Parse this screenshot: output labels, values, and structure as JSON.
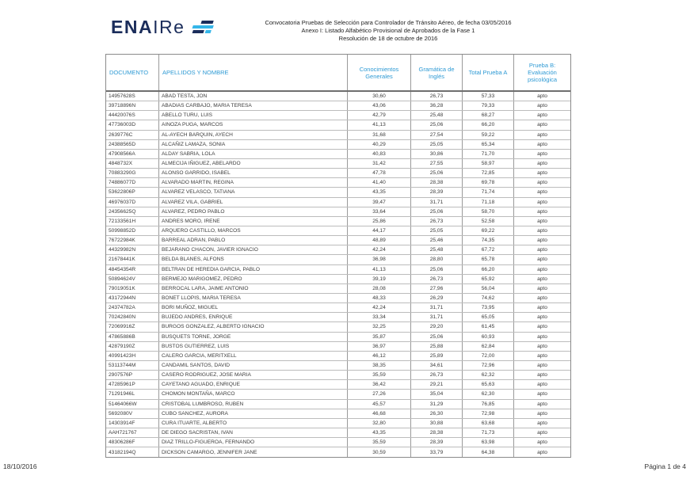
{
  "logo": {
    "text_bold": "ENA",
    "text_light": "IRe"
  },
  "header": {
    "line1": "Convocatoria Pruebas de Selección para Controlador de Tránsito Aéreo, de fecha 03/05/2016",
    "line2": "Anexo I: Listado Alfabético Provisional de Aprobados de la Fase 1",
    "line3": "Resolución de 18 de octubre de 2016"
  },
  "colors": {
    "brand_navy": "#1B2D5B",
    "brand_lightblue": "#35B6E9",
    "table_header_blue": "#2E9AD4"
  },
  "table": {
    "columns": [
      {
        "key": "documento",
        "label": "DOCUMENTO"
      },
      {
        "key": "apellidos_y_nombre",
        "label": "APELLIDOS Y NOMBRE"
      },
      {
        "key": "conocimientos_generales",
        "label": "Conocimientos Generales"
      },
      {
        "key": "gramatica_de_ingles",
        "label": "Gramática de Inglés"
      },
      {
        "key": "total_prueba_a",
        "label": "Total Prueba A"
      },
      {
        "key": "prueba_b",
        "label": "Prueba B: Evaluación psicológica"
      }
    ],
    "rows": [
      [
        "14957628S",
        "ABAD TESTA, JON",
        "30,60",
        "26,73",
        "57,33",
        "apto"
      ],
      [
        "39718896N",
        "ABADIAS CARBAJO, MARIA TERESA",
        "43,06",
        "36,28",
        "79,33",
        "apto"
      ],
      [
        "44420076S",
        "ABELLO TURU, LUIS",
        "42,79",
        "25,48",
        "68,27",
        "apto"
      ],
      [
        "47736003D",
        "AINOZA PUGA, MARCOS",
        "41,13",
        "25,06",
        "66,20",
        "apto"
      ],
      [
        "2639776C",
        "AL-AYECH BARQUIN, AYECH",
        "31,68",
        "27,54",
        "59,22",
        "apto"
      ],
      [
        "24388565D",
        "ALCAÑIZ LAMAZA, SONIA",
        "40,29",
        "25,05",
        "65,34",
        "apto"
      ],
      [
        "47908566A",
        "ALDAY SABRIA, LOLA",
        "40,83",
        "30,86",
        "71,70",
        "apto"
      ],
      [
        "4848732X",
        "ALMECIJA IÑIGUEZ, ABELARDO",
        "31,42",
        "27,55",
        "58,97",
        "apto"
      ],
      [
        "70883290G",
        "ALONSO GARRIDO, ISABEL",
        "47,78",
        "25,06",
        "72,85",
        "apto"
      ],
      [
        "74886077D",
        "ALVARADO MARTIN, REGINA",
        "41,40",
        "28,38",
        "69,78",
        "apto"
      ],
      [
        "53622806P",
        "ALVAREZ VELASCO, TATIANA",
        "43,35",
        "28,39",
        "71,74",
        "apto"
      ],
      [
        "46976037D",
        "ALVAREZ VILA, GABRIEL",
        "39,47",
        "31,71",
        "71,18",
        "apto"
      ],
      [
        "24356625Q",
        "ALVAREZ, PEDRO PABLO",
        "33,64",
        "25,06",
        "58,70",
        "apto"
      ],
      [
        "72133561H",
        "ANDRES MORO, IRENE",
        "25,86",
        "26,73",
        "52,58",
        "apto"
      ],
      [
        "50998852D",
        "ARQUERO CASTILLO, MARCOS",
        "44,17",
        "25,05",
        "69,22",
        "apto"
      ],
      [
        "76722984K",
        "BARREAL ADRAN, PABLO",
        "48,89",
        "25,46",
        "74,35",
        "apto"
      ],
      [
        "44329982N",
        "BEJARANO CHACON, JAVIER IGNACIO",
        "42,24",
        "25,48",
        "67,72",
        "apto"
      ],
      [
        "21678441K",
        "BELDA BLANES, ALFONS",
        "36,98",
        "28,80",
        "65,78",
        "apto"
      ],
      [
        "48454354R",
        "BELTRAN DE HEREDIA GARCIA, PABLO",
        "41,13",
        "25,06",
        "66,20",
        "apto"
      ],
      [
        "50894624V",
        "BERMEJO MARIGOMEZ, PEDRO",
        "39,19",
        "26,73",
        "65,92",
        "apto"
      ],
      [
        "79019051K",
        "BERROCAL LARA, JAIME ANTONIO",
        "28,08",
        "27,96",
        "56,04",
        "apto"
      ],
      [
        "43172944N",
        "BONET LLOPIS, MARIA TERESA",
        "48,33",
        "26,29",
        "74,62",
        "apto"
      ],
      [
        "24374782A",
        "BORI MUÑOZ, MIGUEL",
        "42,24",
        "31,71",
        "73,95",
        "apto"
      ],
      [
        "70242840N",
        "BUJEDO ANDRES, ENRIQUE",
        "33,34",
        "31,71",
        "65,05",
        "apto"
      ],
      [
        "72069916Z",
        "BURGOS GONZALEZ, ALBERTO IGNACIO",
        "32,25",
        "29,20",
        "61,45",
        "apto"
      ],
      [
        "47865886B",
        "BUSQUETS TORNE, JORGE",
        "35,87",
        "25,06",
        "60,93",
        "apto"
      ],
      [
        "42879190Z",
        "BUSTOS GUTIERREZ, LUIS",
        "36,97",
        "25,88",
        "62,84",
        "apto"
      ],
      [
        "40991423H",
        "CALERO GARCIA, MERITXELL",
        "46,12",
        "25,89",
        "72,00",
        "apto"
      ],
      [
        "53113744M",
        "CANDAMIL SANTOS, DAVID",
        "38,35",
        "34,61",
        "72,96",
        "apto"
      ],
      [
        "2907576P",
        "CASERO RODRIGUEZ, JOSE MARIA",
        "35,59",
        "26,73",
        "62,32",
        "apto"
      ],
      [
        "47285961P",
        "CAYETANO AGUADO, ENRIQUE",
        "36,42",
        "29,21",
        "65,63",
        "apto"
      ],
      [
        "71291946L",
        "CHOMON MONTAÑA, MARCO",
        "27,26",
        "35,04",
        "62,30",
        "apto"
      ],
      [
        "51464066W",
        "CRISTOBAL LUMBROSO, RUBEN",
        "45,57",
        "31,29",
        "76,85",
        "apto"
      ],
      [
        "5692080V",
        "CUBO SANCHEZ, AURORA",
        "46,68",
        "26,30",
        "72,98",
        "apto"
      ],
      [
        "14303914F",
        "CURA ITUARTE, ALBERTO",
        "32,80",
        "30,88",
        "63,68",
        "apto"
      ],
      [
        "AAH721767",
        "DE DIEGO SACRISTAN, IVAN",
        "43,35",
        "28,38",
        "71,73",
        "apto"
      ],
      [
        "48306286F",
        "DIAZ TRILLO-FIGUEROA, FERNANDO",
        "35,59",
        "28,39",
        "63,98",
        "apto"
      ],
      [
        "43182194Q",
        "DICKSON CAMARGO, JENNIFER JANE",
        "30,59",
        "33,79",
        "64,38",
        "apto"
      ]
    ]
  },
  "footer": {
    "date": "18/10/2016",
    "page": "Página 1 de 4"
  }
}
